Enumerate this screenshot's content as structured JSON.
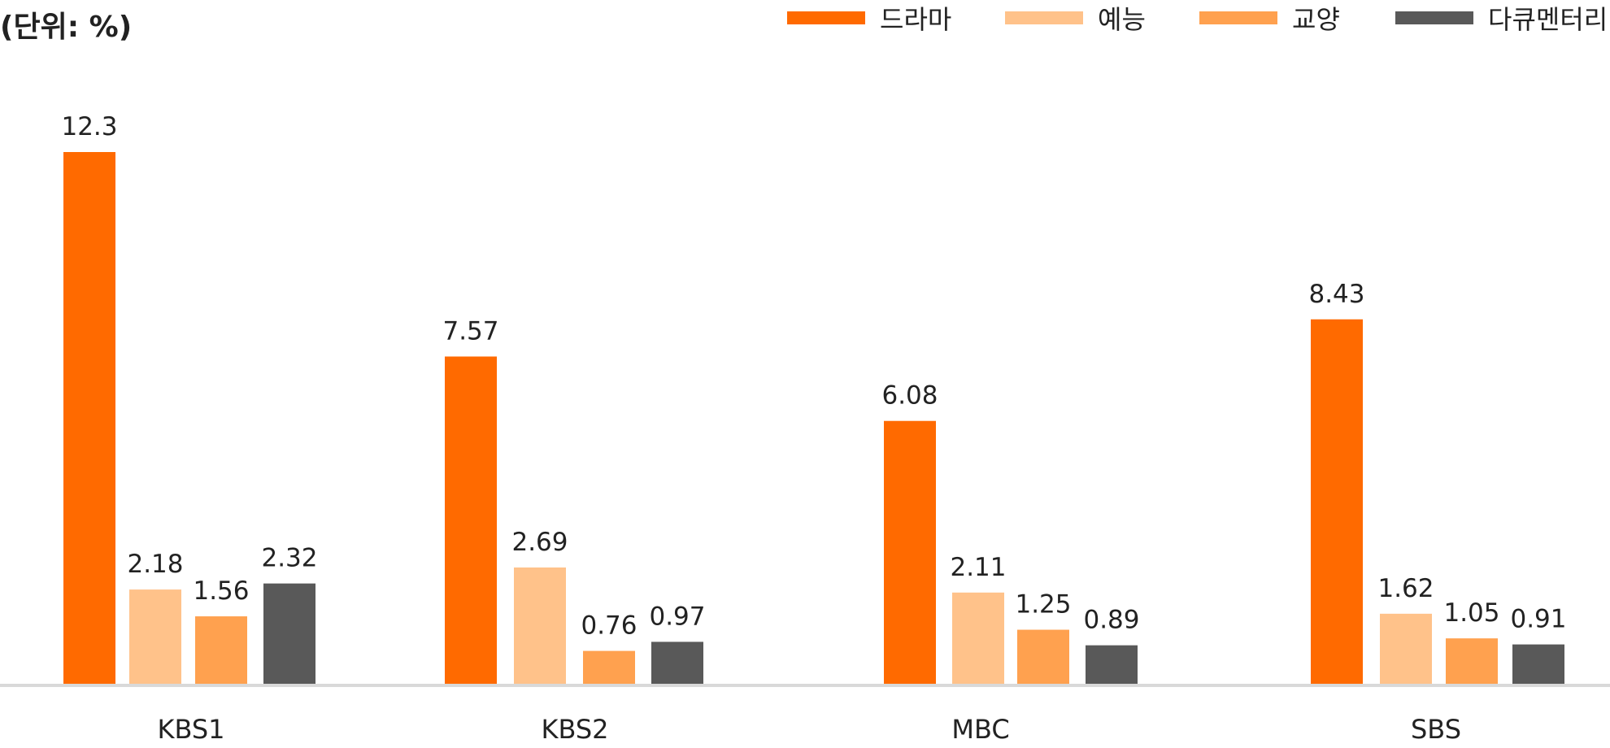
{
  "unit_label": "(단위: %)",
  "chart_data": {
    "type": "bar",
    "categories": [
      "KBS1",
      "KBS2",
      "MBC",
      "SBS"
    ],
    "series": [
      {
        "name": "드라마",
        "color": "#ff6a00",
        "values": [
          12.3,
          7.57,
          6.08,
          8.43
        ]
      },
      {
        "name": "예능",
        "color": "#ffc28a",
        "values": [
          2.18,
          2.69,
          2.11,
          1.62
        ]
      },
      {
        "name": "교양",
        "color": "#ffa14f",
        "values": [
          1.56,
          0.76,
          1.25,
          1.05
        ]
      },
      {
        "name": "다큐멘터리",
        "color": "#595959",
        "values": [
          2.32,
          0.97,
          0.89,
          0.91
        ]
      }
    ],
    "value_labels": [
      [
        "12.3",
        "2.18",
        "1.56",
        "2.32"
      ],
      [
        "7.57",
        "2.69",
        "0.76",
        "0.97"
      ],
      [
        "6.08",
        "2.11",
        "1.25",
        "0.89"
      ],
      [
        "8.43",
        "1.62",
        "1.05",
        "0.91"
      ]
    ],
    "ylim": [
      0,
      12.3
    ],
    "grid": false,
    "legend_position": "top-right",
    "axis_color": "#d9d9d9"
  }
}
